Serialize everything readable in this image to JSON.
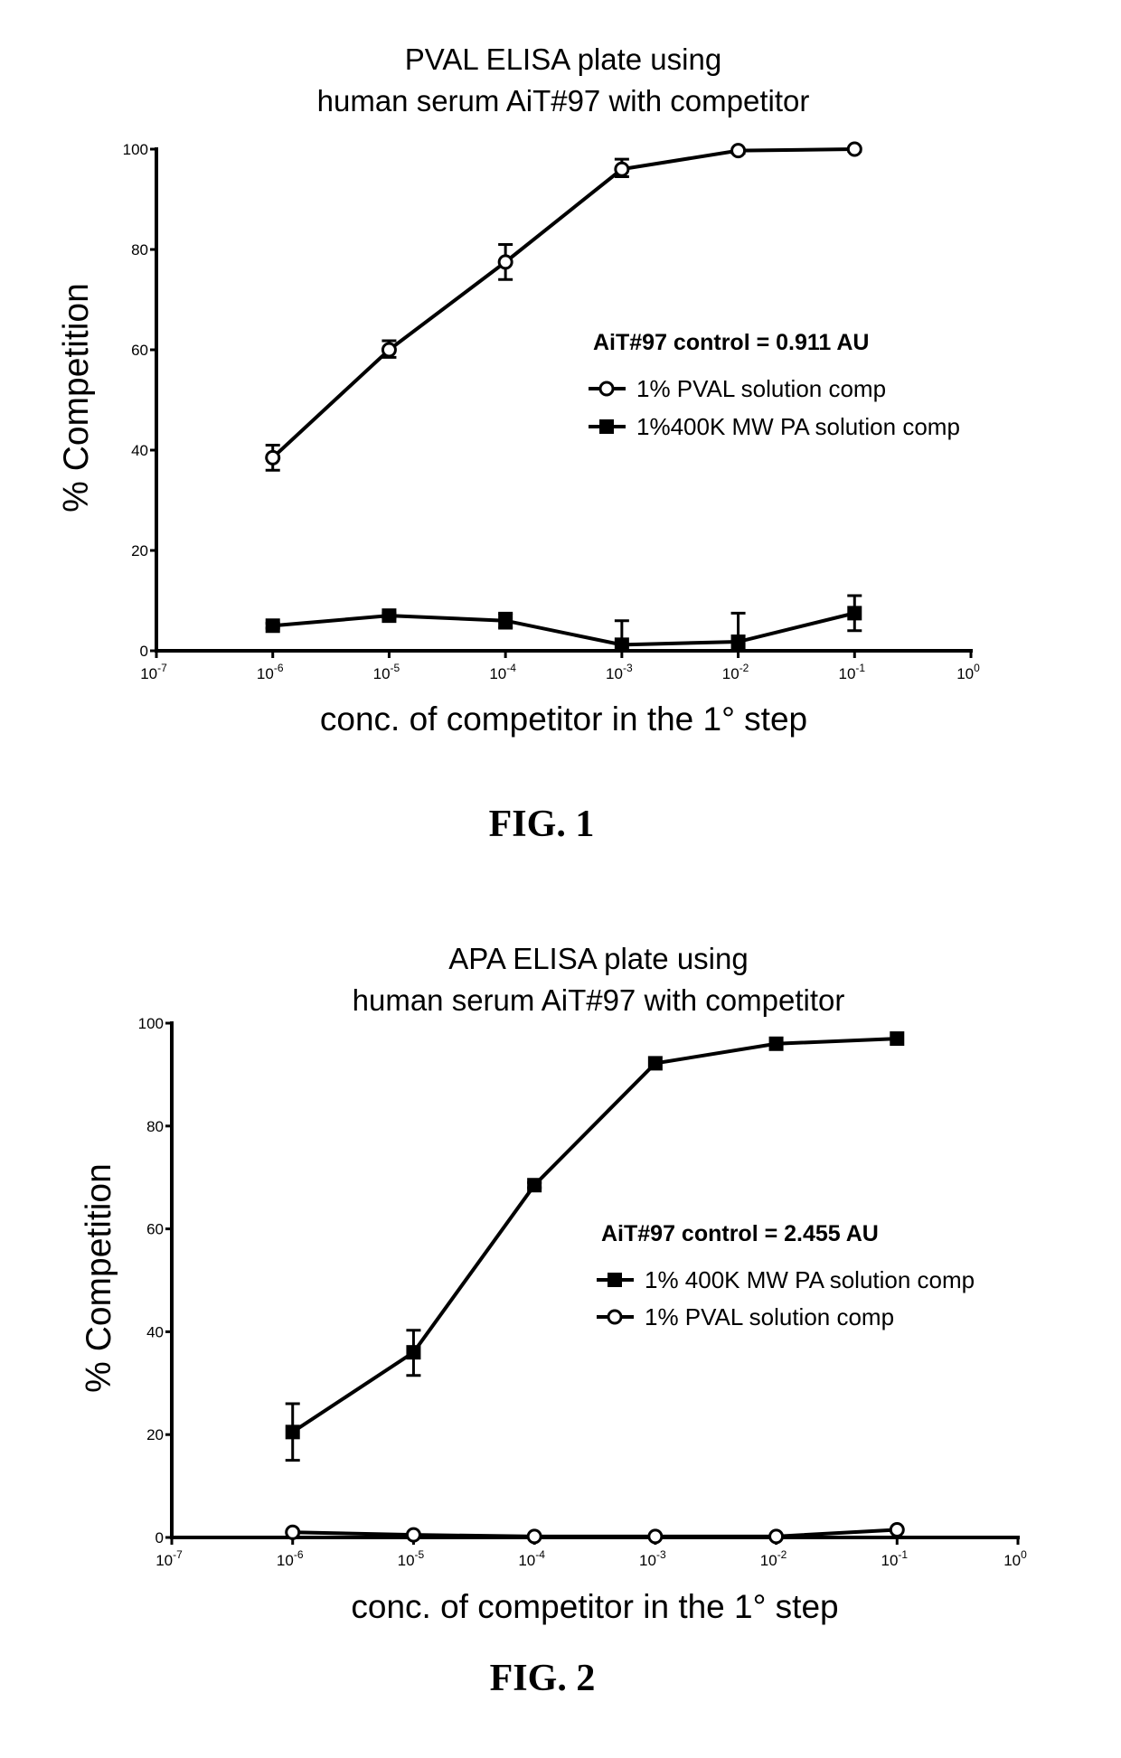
{
  "chart_data": [
    {
      "type": "line",
      "figure_label": "FIG. 1",
      "title": [
        "PVAL ELISA plate using",
        "human serum AiT#97 with competitor"
      ],
      "xlabel": "conc. of competitor in the 1° step",
      "ylabel": "% Competition",
      "xscale": "log",
      "xlim": [
        1e-07,
        1
      ],
      "ylim": [
        0,
        100
      ],
      "xticks": [
        {
          "base": "10",
          "exp": "-7"
        },
        {
          "base": "10",
          "exp": "-6"
        },
        {
          "base": "10",
          "exp": "-5"
        },
        {
          "base": "10",
          "exp": "-4"
        },
        {
          "base": "10",
          "exp": "-3"
        },
        {
          "base": "10",
          "exp": "-2"
        },
        {
          "base": "10",
          "exp": "-1"
        },
        {
          "base": "10",
          "exp": "0"
        }
      ],
      "yticks": [
        "0",
        "20",
        "40",
        "60",
        "80",
        "100"
      ],
      "legend_title": "AiT#97 control = 0.911 AU",
      "legend_position": "center-right",
      "x": [
        1e-06,
        1e-05,
        0.0001,
        0.001,
        0.01,
        0.1
      ],
      "series": [
        {
          "name": "1% PVAL solution comp",
          "marker": "open-circle",
          "values": [
            38.5,
            60,
            77.5,
            96,
            99.7,
            100
          ],
          "err_low": [
            36,
            58.5,
            74,
            94.5,
            99.2,
            99.6
          ],
          "err_high": [
            41,
            61.8,
            81,
            98,
            100,
            100.3
          ]
        },
        {
          "name": "1%400K MW PA solution comp",
          "marker": "filled-square",
          "values": [
            5,
            7,
            6,
            1.2,
            1.8,
            7.5
          ],
          "err_low": [
            4.5,
            6.5,
            4.5,
            0,
            0,
            4
          ],
          "err_high": [
            5.5,
            7.5,
            7.5,
            6,
            7.5,
            11
          ]
        }
      ]
    },
    {
      "type": "line",
      "figure_label": "FIG. 2",
      "title": [
        "APA ELISA plate using",
        "human serum AiT#97 with competitor"
      ],
      "xlabel": "conc. of competitor in the 1° step",
      "ylabel": "% Competition",
      "xscale": "log",
      "xlim": [
        1e-07,
        1
      ],
      "ylim": [
        0,
        100
      ],
      "xticks": [
        {
          "base": "10",
          "exp": "-7"
        },
        {
          "base": "10",
          "exp": "-6"
        },
        {
          "base": "10",
          "exp": "-5"
        },
        {
          "base": "10",
          "exp": "-4"
        },
        {
          "base": "10",
          "exp": "-3"
        },
        {
          "base": "10",
          "exp": "-2"
        },
        {
          "base": "10",
          "exp": "-1"
        },
        {
          "base": "10",
          "exp": "0"
        }
      ],
      "yticks": [
        "0",
        "20",
        "40",
        "60",
        "80",
        "100"
      ],
      "legend_title": "AiT#97 control = 2.455 AU",
      "legend_position": "center-right",
      "x": [
        1e-06,
        1e-05,
        0.0001,
        0.001,
        0.01,
        0.1
      ],
      "series": [
        {
          "name": "1% 400K MW PA solution comp",
          "marker": "filled-square",
          "values": [
            20.5,
            36,
            68.5,
            92.2,
            96,
            97
          ],
          "err_low": [
            15,
            31.5,
            68,
            92,
            96,
            97
          ],
          "err_high": [
            26,
            40.3,
            69,
            92.5,
            96,
            97
          ]
        },
        {
          "name": "1% PVAL solution comp",
          "marker": "open-circle",
          "values": [
            1,
            0.5,
            0.2,
            0.2,
            0.2,
            1.5
          ],
          "err_low": [
            1,
            0.5,
            0.2,
            0.2,
            0.2,
            1.5
          ],
          "err_high": [
            1,
            0.5,
            0.2,
            0.2,
            0.2,
            1.5
          ]
        }
      ]
    }
  ]
}
